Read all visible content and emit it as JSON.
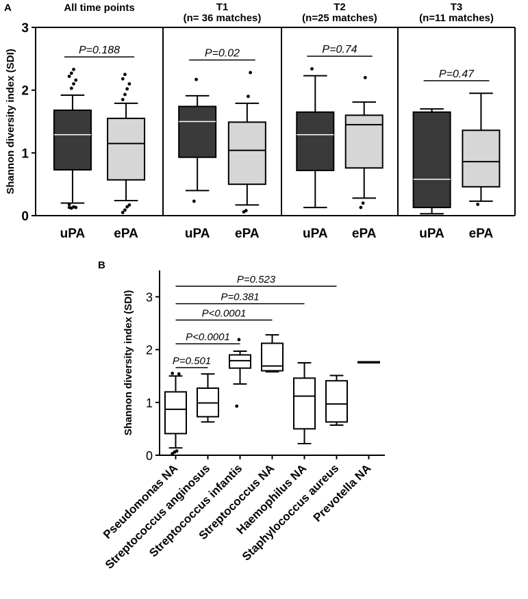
{
  "colors": {
    "upa": "#3a3a3a",
    "epa": "#d6d6d6",
    "species": "#ffffff",
    "stroke": "#000000"
  },
  "chart_data": [
    {
      "type": "boxplot",
      "panel": "A",
      "ylabel": "Shannon diversity index (SDI)",
      "ylim": [
        0,
        3
      ],
      "yticks": [
        "0",
        "1",
        "2",
        "3"
      ],
      "groups": [
        {
          "title_line1": "All time points",
          "title_line2": "",
          "pvalue": "P=0.188",
          "boxes": [
            {
              "label": "uPA",
              "fill": "upa",
              "whisker_low": 0.2,
              "q1": 0.73,
              "median": 1.29,
              "q3": 1.68,
              "whisker_high": 1.92,
              "outliers": [
                0.13,
                0.12,
                0.14,
                0.13,
                0.18,
                2.03,
                2.1,
                2.16,
                2.22,
                2.27,
                2.33
              ]
            },
            {
              "label": "ePA",
              "fill": "epa",
              "whisker_low": 0.24,
              "q1": 0.57,
              "median": 1.15,
              "q3": 1.55,
              "whisker_high": 1.79,
              "outliers": [
                0.05,
                0.09,
                0.14,
                0.17,
                1.85,
                1.93,
                2.02,
                2.1,
                2.18,
                2.25
              ]
            }
          ]
        },
        {
          "title_line1": "T1",
          "title_line2": "(n= 36 matches)",
          "pvalue": "P=0.02",
          "boxes": [
            {
              "label": "uPA",
              "fill": "upa",
              "whisker_low": 0.4,
              "q1": 0.93,
              "median": 1.5,
              "q3": 1.74,
              "whisker_high": 1.91,
              "outliers": [
                0.23,
                2.17
              ]
            },
            {
              "label": "ePA",
              "fill": "epa",
              "whisker_low": 0.17,
              "q1": 0.5,
              "median": 1.04,
              "q3": 1.49,
              "whisker_high": 1.79,
              "outliers": [
                0.06,
                0.08,
                1.9,
                2.28
              ]
            }
          ]
        },
        {
          "title_line1": "T2",
          "title_line2": "(n=25 matches)",
          "pvalue": "P=0.74",
          "boxes": [
            {
              "label": "uPA",
              "fill": "upa",
              "whisker_low": 0.13,
              "q1": 0.72,
              "median": 1.29,
              "q3": 1.65,
              "whisker_high": 2.23,
              "outliers": [
                2.34
              ]
            },
            {
              "label": "ePA",
              "fill": "epa",
              "whisker_low": 0.28,
              "q1": 0.76,
              "median": 1.45,
              "q3": 1.6,
              "whisker_high": 1.81,
              "outliers": [
                0.13,
                0.2,
                2.2
              ]
            }
          ]
        },
        {
          "title_line1": "T3",
          "title_line2": "(n=11 matches)",
          "pvalue": "P=0.47",
          "boxes": [
            {
              "label": "uPA",
              "fill": "upa",
              "whisker_low": 0.03,
              "q1": 0.13,
              "median": 0.58,
              "q3": 1.65,
              "whisker_high": 1.7,
              "outliers": []
            },
            {
              "label": "ePA",
              "fill": "epa",
              "whisker_low": 0.23,
              "q1": 0.46,
              "median": 0.86,
              "q3": 1.36,
              "whisker_high": 1.95,
              "outliers": [
                0.18
              ]
            }
          ]
        }
      ]
    },
    {
      "type": "boxplot",
      "panel": "B",
      "ylabel": "Shannon diversity index (SDI)",
      "ylim": [
        0,
        3.5
      ],
      "yticks": [
        "0",
        "1",
        "2",
        "3"
      ],
      "categories": [
        "Pseudomonas NA",
        "Streptococcus anginosus",
        "Streptococcus infantis",
        "Streptococcus NA",
        "Haemophilus NA",
        "Staphylococcus aureus",
        "Prevotella NA"
      ],
      "boxes": [
        {
          "whisker_low": 0.14,
          "q1": 0.41,
          "median": 0.87,
          "q3": 1.2,
          "whisker_high": 1.5,
          "outliers": [
            0.03,
            0.06,
            0.08,
            1.54,
            1.55
          ]
        },
        {
          "whisker_low": 0.63,
          "q1": 0.73,
          "median": 0.99,
          "q3": 1.27,
          "whisker_high": 1.54,
          "outliers": []
        },
        {
          "whisker_low": 1.35,
          "q1": 1.65,
          "median": 1.79,
          "q3": 1.9,
          "whisker_high": 1.97,
          "outliers": [
            0.93,
            2.19
          ]
        },
        {
          "whisker_low": 1.58,
          "q1": 1.6,
          "median": 1.69,
          "q3": 2.12,
          "whisker_high": 2.28,
          "outliers": []
        },
        {
          "whisker_low": 0.22,
          "q1": 0.5,
          "median": 1.12,
          "q3": 1.46,
          "whisker_high": 1.75,
          "outliers": []
        },
        {
          "whisker_low": 0.57,
          "q1": 0.63,
          "median": 0.97,
          "q3": 1.41,
          "whisker_high": 1.51,
          "outliers": []
        },
        {
          "whisker_low": 1.77,
          "q1": 1.77,
          "median": 1.77,
          "q3": 1.77,
          "whisker_high": 1.77,
          "outliers": []
        }
      ],
      "comparisons": [
        {
          "from": 0,
          "to": 1,
          "label": "P=0.501",
          "y": 1.66
        },
        {
          "from": 0,
          "to": 2,
          "label": "P<0.0001",
          "y": 2.11
        },
        {
          "from": 0,
          "to": 3,
          "label": "P<0.0001",
          "y": 2.56
        },
        {
          "from": 0,
          "to": 4,
          "label": "P=0.381",
          "y": 2.87
        },
        {
          "from": 0,
          "to": 5,
          "label": "P=0.523",
          "y": 3.2
        }
      ]
    }
  ]
}
